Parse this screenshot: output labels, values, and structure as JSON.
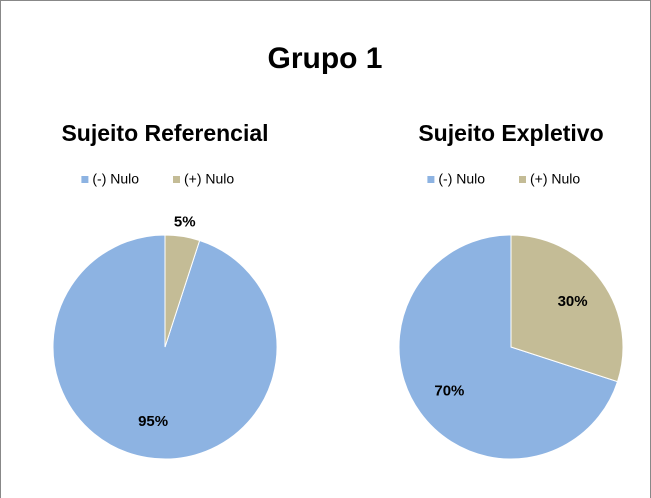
{
  "title": "Grupo 1",
  "chart_data": [
    {
      "type": "pie",
      "title": "Sujeito Referencial",
      "categories": [
        "(-) Nulo",
        "(+) Nulo"
      ],
      "values": [
        95,
        5
      ],
      "value_labels": [
        "95%",
        "5%"
      ],
      "colors": [
        "#8db3e2",
        "#c4bc96"
      ],
      "legend": "top"
    },
    {
      "type": "pie",
      "title": "Sujeito Expletivo",
      "categories": [
        "(-) Nulo",
        "(+) Nulo"
      ],
      "values": [
        70,
        30
      ],
      "value_labels": [
        "70%",
        "30%"
      ],
      "colors": [
        "#8db3e2",
        "#c4bc96"
      ],
      "legend": "top"
    }
  ]
}
